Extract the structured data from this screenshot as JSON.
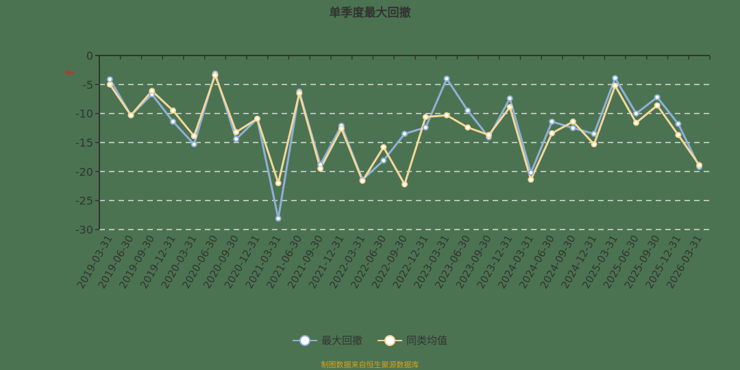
{
  "title": "单季度最大回撤",
  "unit_label": "%",
  "legend": [
    {
      "label": "最大回撤",
      "color": "#8fb0d8"
    },
    {
      "label": "同类均值",
      "color": "#f5d79a"
    }
  ],
  "footer": "制图数据来自恒生聚源数据库",
  "colors": {
    "background": "#4b7351",
    "axis": "#333333",
    "grid": "#dddddd",
    "series_1": "#8fb0d8",
    "series_2": "#f5d79a",
    "footer": "#d9a21b"
  },
  "chart_data": {
    "type": "line",
    "title": "单季度最大回撤",
    "xlabel": "",
    "ylabel": "%",
    "ylim": [
      -30,
      0
    ],
    "yticks": [
      0,
      -5,
      -10,
      -15,
      -20,
      -25,
      -30
    ],
    "grid": true,
    "legend_position": "bottom",
    "categories": [
      "2019-03-31",
      "2019-06-30",
      "2019-09-30",
      "2019-12-31",
      "2020-03-31",
      "2020-06-30",
      "2020-09-30",
      "2020-12-31",
      "2021-03-31",
      "2021-06-30",
      "2021-09-30",
      "2021-12-31",
      "2022-03-31",
      "2022-06-30",
      "2022-09-30",
      "2022-12-31",
      "2023-03-31",
      "2023-06-30",
      "2023-09-30",
      "2023-12-31",
      "2024-03-31",
      "2024-06-30",
      "2024-09-30",
      "2024-12-31",
      "2025-03-31",
      "2025-06-30",
      "2025-09-30",
      "2025-12-31",
      "2026-03-31"
    ],
    "series": [
      {
        "name": "最大回撤",
        "values": [
          -4.1,
          -10.3,
          -6.7,
          -11.4,
          -15.3,
          -3.1,
          -14.4,
          -10.9,
          -28.1,
          -6.2,
          -18.8,
          -12.1,
          -21.4,
          -18.1,
          -13.5,
          -12.4,
          -4.0,
          -9.5,
          -14.1,
          -7.4,
          -20.2,
          -11.4,
          -12.5,
          -13.5,
          -3.9,
          -10.0,
          -7.2,
          -11.8,
          -19.2
        ]
      },
      {
        "name": "同类均值",
        "values": [
          -5.0,
          -10.3,
          -6.1,
          -9.5,
          -13.9,
          -3.4,
          -13.2,
          -10.9,
          -22.0,
          -6.5,
          -19.5,
          -12.6,
          -21.6,
          -15.8,
          -22.2,
          -10.6,
          -10.3,
          -12.4,
          -13.7,
          -8.9,
          -21.4,
          -13.4,
          -11.4,
          -15.3,
          -5.2,
          -11.6,
          -8.6,
          -13.7,
          -18.9
        ]
      }
    ]
  }
}
